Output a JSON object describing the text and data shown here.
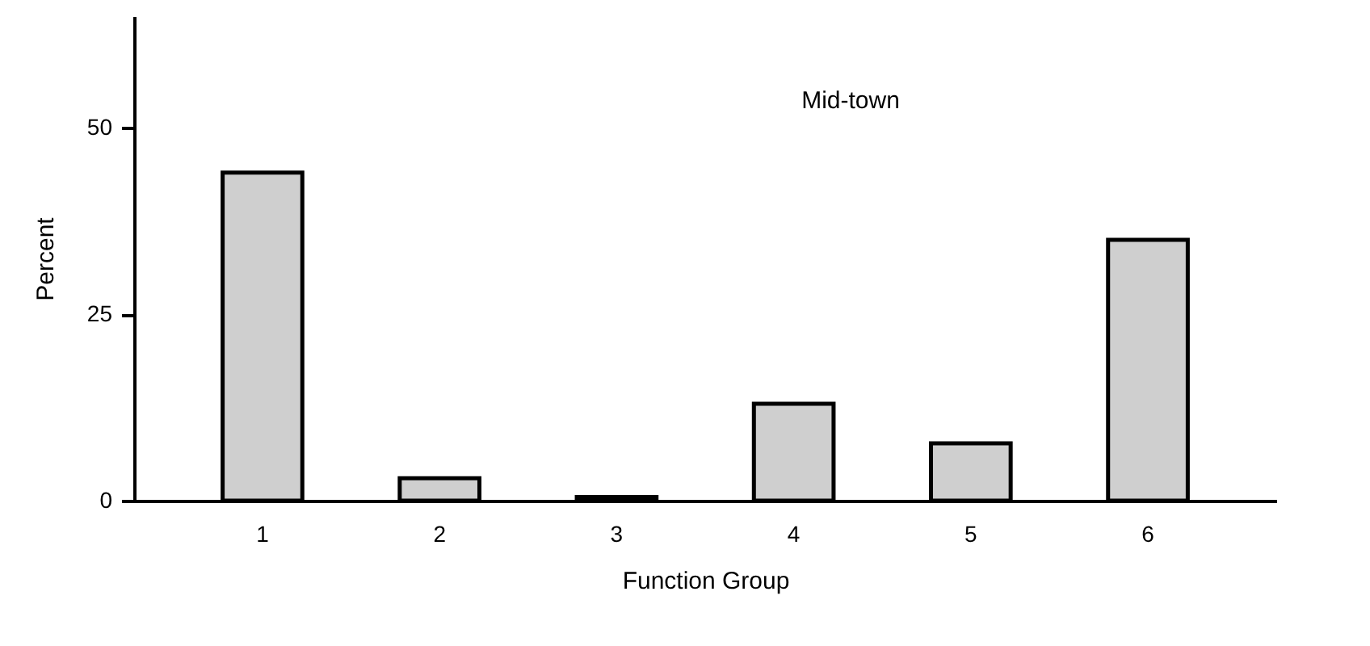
{
  "chart_data": {
    "type": "bar",
    "title": "Mid-town",
    "xlabel": "Function Group",
    "ylabel": "Percent",
    "categories": [
      "1",
      "2",
      "3",
      "4",
      "5",
      "6"
    ],
    "values": [
      44,
      3,
      0.5,
      13,
      7.7,
      35
    ],
    "color": "#cfcfcf",
    "ylim": [
      0,
      65
    ],
    "yticks": [
      0,
      25,
      50
    ],
    "grid": false
  }
}
